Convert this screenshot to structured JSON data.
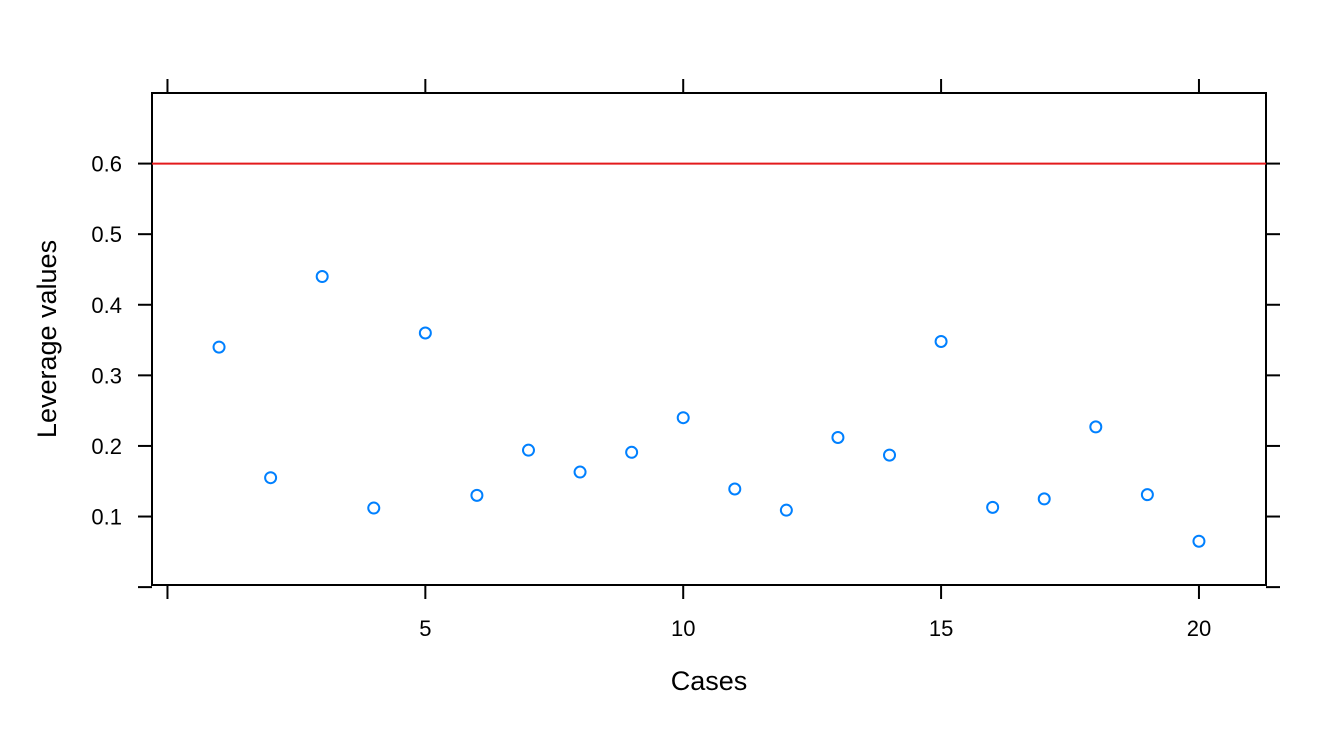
{
  "chart_data": {
    "type": "scatter",
    "title": "",
    "xlabel": "Cases",
    "ylabel": "Leverage values",
    "xlim": [
      -0.3,
      21.3
    ],
    "ylim": [
      0.003,
      0.7
    ],
    "x_ticks": [
      0,
      5,
      10,
      15,
      20
    ],
    "x_tick_labels": [
      "",
      "5",
      "10",
      "15",
      "20"
    ],
    "y_ticks": [
      0.0,
      0.1,
      0.2,
      0.3,
      0.4,
      0.5,
      0.6
    ],
    "y_tick_labels": [
      "",
      "0.1",
      "0.2",
      "0.3",
      "0.4",
      "0.5",
      "0.6"
    ],
    "grid": false,
    "reference_line": {
      "y": 0.6,
      "color": "#e31a1c"
    },
    "point_color": "#0080ff",
    "series": [
      {
        "x": [
          1,
          2,
          3,
          4,
          5,
          6,
          7,
          8,
          9,
          10,
          11,
          12,
          13,
          14,
          15,
          16,
          17,
          18,
          19,
          20
        ],
        "y": [
          0.34,
          0.155,
          0.44,
          0.112,
          0.36,
          0.13,
          0.194,
          0.163,
          0.191,
          0.24,
          0.139,
          0.109,
          0.212,
          0.187,
          0.348,
          0.113,
          0.125,
          0.227,
          0.131,
          0.065
        ]
      }
    ]
  }
}
